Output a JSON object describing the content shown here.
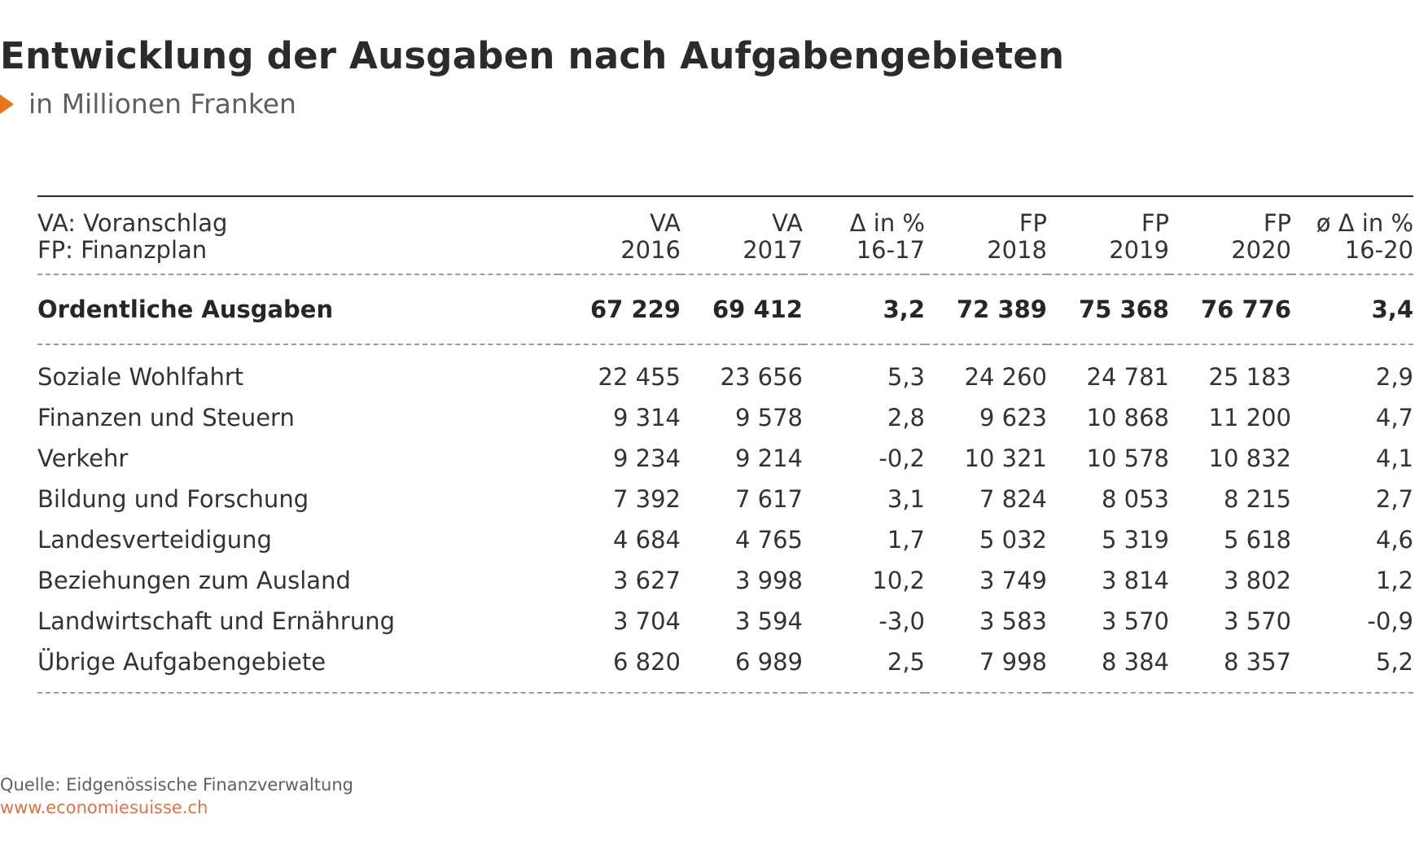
{
  "header": {
    "title": "Entwicklung der Ausgaben nach Aufgabengebieten",
    "subtitle": "in Millionen Franken"
  },
  "footer": {
    "source": "Quelle: Eidgenössische Finanzverwaltung",
    "url": "www.economiesuisse.ch"
  },
  "colors": {
    "accent": "#e8731e",
    "url": "#d9744a",
    "title": "#2b2b2b",
    "divider": "#9a9a9a"
  },
  "chart_data": {
    "type": "table",
    "title": "Entwicklung der Ausgaben nach Aufgabengebieten",
    "subtitle": "in Millionen Franken",
    "legend_lines": [
      "VA: Voranschlag",
      "FP: Finanzplan"
    ],
    "columns": [
      {
        "line1": "VA",
        "line2": "2016"
      },
      {
        "line1": "VA",
        "line2": "2017"
      },
      {
        "line1": "Δ in %",
        "line2": "16-17"
      },
      {
        "line1": "FP",
        "line2": "2018"
      },
      {
        "line1": "FP",
        "line2": "2019"
      },
      {
        "line1": "FP",
        "line2": "2020"
      },
      {
        "line1": "ø Δ in %",
        "line2": "16-20"
      }
    ],
    "total": {
      "label": "Ordentliche Ausgaben",
      "values": [
        "67 229",
        "69 412",
        "3,2",
        "72 389",
        "75 368",
        "76 776",
        "3,4"
      ]
    },
    "rows": [
      {
        "label": "Soziale Wohlfahrt",
        "values": [
          "22 455",
          "23 656",
          "5,3",
          "24 260",
          "24 781",
          "25 183",
          "2,9"
        ]
      },
      {
        "label": "Finanzen und Steuern",
        "values": [
          "9 314",
          "9 578",
          "2,8",
          "9 623",
          "10 868",
          "11 200",
          "4,7"
        ]
      },
      {
        "label": "Verkehr",
        "values": [
          "9 234",
          "9 214",
          "-0,2",
          "10 321",
          "10 578",
          "10 832",
          "4,1"
        ]
      },
      {
        "label": "Bildung und Forschung",
        "values": [
          "7 392",
          "7 617",
          "3,1",
          "7 824",
          "8 053",
          "8 215",
          "2,7"
        ]
      },
      {
        "label": "Landesverteidigung",
        "values": [
          "4 684",
          "4 765",
          "1,7",
          "5 032",
          "5 319",
          "5 618",
          "4,6"
        ]
      },
      {
        "label": "Beziehungen zum Ausland",
        "values": [
          "3 627",
          "3 998",
          "10,2",
          "3 749",
          "3 814",
          "3 802",
          "1,2"
        ]
      },
      {
        "label": "Landwirtschaft und Ernährung",
        "values": [
          "3 704",
          "3 594",
          "-3,0",
          "3 583",
          "3 570",
          "3 570",
          "-0,9"
        ]
      },
      {
        "label": "Übrige Aufgabengebiete",
        "values": [
          "6 820",
          "6 989",
          "2,5",
          "7 998",
          "8 384",
          "8 357",
          "5,2"
        ]
      }
    ]
  }
}
